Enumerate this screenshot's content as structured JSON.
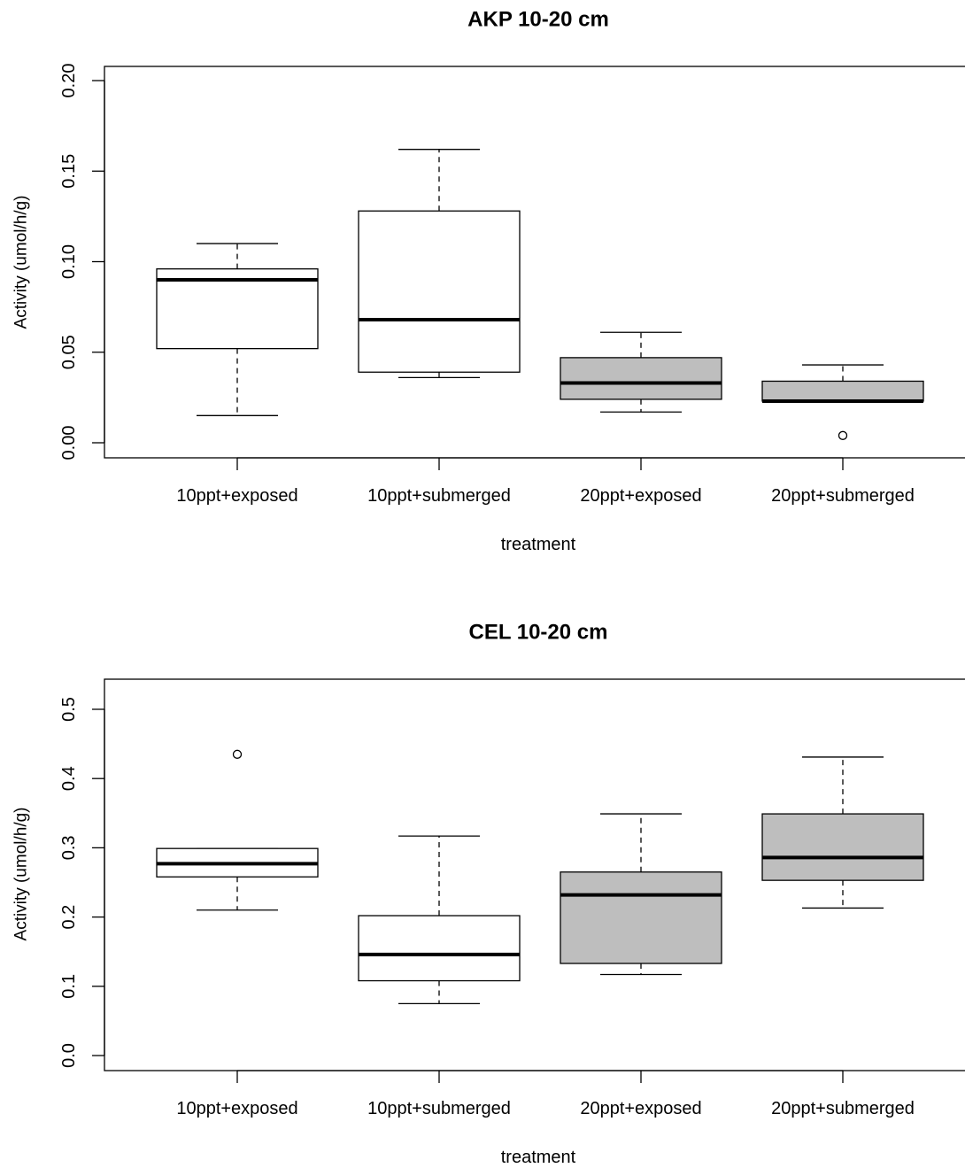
{
  "chart_data": [
    {
      "type": "boxplot",
      "title": "AKP 10-20 cm",
      "xlabel": "treatment",
      "ylabel": "Activity (umol/h/g)",
      "ylim": [
        0,
        0.2
      ],
      "yticks": [
        "0.00",
        "0.05",
        "0.10",
        "0.15",
        "0.20"
      ],
      "ytick_values": [
        0,
        0.05,
        0.1,
        0.15,
        0.2
      ],
      "categories": [
        "10ppt+exposed",
        "10ppt+submerged",
        "20ppt+exposed",
        "20ppt+submerged"
      ],
      "boxes": [
        {
          "category": "10ppt+exposed",
          "whisker_low": 0.015,
          "q1": 0.052,
          "median": 0.09,
          "q3": 0.096,
          "whisker_high": 0.11,
          "outliers": [],
          "fill": "#ffffff"
        },
        {
          "category": "10ppt+submerged",
          "whisker_low": 0.036,
          "q1": 0.039,
          "median": 0.068,
          "q3": 0.128,
          "whisker_high": 0.162,
          "outliers": [],
          "fill": "#ffffff"
        },
        {
          "category": "20ppt+exposed",
          "whisker_low": 0.017,
          "q1": 0.024,
          "median": 0.033,
          "q3": 0.047,
          "whisker_high": 0.061,
          "outliers": [],
          "fill": "#bebebe"
        },
        {
          "category": "20ppt+submerged",
          "whisker_low": 0.023,
          "q1": 0.023,
          "median": 0.023,
          "q3": 0.034,
          "whisker_high": 0.043,
          "outliers": [
            0.004
          ],
          "fill": "#bebebe"
        }
      ]
    },
    {
      "type": "boxplot",
      "title": "CEL 10-20 cm",
      "xlabel": "treatment",
      "ylabel": "Activity (umol/h/g)",
      "ylim": [
        0,
        0.5
      ],
      "yticks": [
        "0.0",
        "0.1",
        "0.2",
        "0.3",
        "0.4",
        "0.5"
      ],
      "ytick_values": [
        0,
        0.1,
        0.2,
        0.3,
        0.4,
        0.5
      ],
      "categories": [
        "10ppt+exposed",
        "10ppt+submerged",
        "20ppt+exposed",
        "20ppt+submerged"
      ],
      "boxes": [
        {
          "category": "10ppt+exposed",
          "whisker_low": 0.21,
          "q1": 0.258,
          "median": 0.277,
          "q3": 0.299,
          "whisker_high": 0.299,
          "outliers": [
            0.435
          ],
          "fill": "#ffffff"
        },
        {
          "category": "10ppt+submerged",
          "whisker_low": 0.075,
          "q1": 0.108,
          "median": 0.146,
          "q3": 0.202,
          "whisker_high": 0.317,
          "outliers": [],
          "fill": "#ffffff"
        },
        {
          "category": "20ppt+exposed",
          "whisker_low": 0.117,
          "q1": 0.133,
          "median": 0.232,
          "q3": 0.265,
          "whisker_high": 0.349,
          "outliers": [],
          "fill": "#bebebe"
        },
        {
          "category": "20ppt+submerged",
          "whisker_low": 0.213,
          "q1": 0.253,
          "median": 0.286,
          "q3": 0.349,
          "whisker_high": 0.431,
          "outliers": [],
          "fill": "#bebebe"
        }
      ]
    }
  ]
}
